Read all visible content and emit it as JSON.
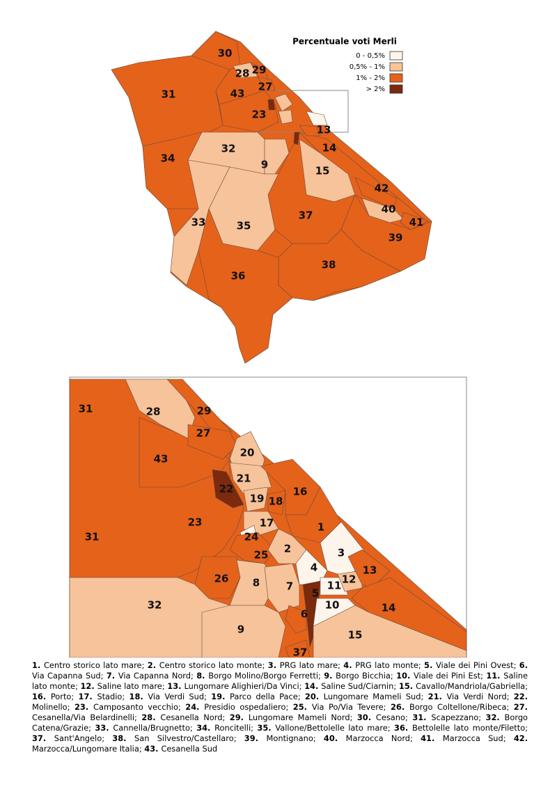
{
  "legend": {
    "title": "Percentuale voti Merli",
    "items": [
      {
        "label": "0 - 0,5%",
        "color": "#fdf5ec"
      },
      {
        "label": "0,5% - 1%",
        "color": "#f7c39a"
      },
      {
        "label": "1% - 2%",
        "color": "#e5621b"
      },
      {
        "label": "> 2%",
        "color": "#7b2a0d"
      }
    ]
  },
  "zones": [
    {
      "id": "1",
      "name": "Centro storico lato mare",
      "color": "#e5621b"
    },
    {
      "id": "2",
      "name": "Centro storico lato monte",
      "color": "#f7c39a"
    },
    {
      "id": "3",
      "name": "PRG lato mare",
      "color": "#fdf5ec"
    },
    {
      "id": "4",
      "name": "PRG lato monte",
      "color": "#fdf5ec"
    },
    {
      "id": "5",
      "name": "Viale dei Pini Ovest",
      "color": "#7b2a0d"
    },
    {
      "id": "6",
      "name": "Via Capanna Sud",
      "color": "#e5621b"
    },
    {
      "id": "7",
      "name": "Via Capanna Nord",
      "color": "#f7c39a"
    },
    {
      "id": "8",
      "name": "Borgo Molino/Borgo Ferretti",
      "color": "#f7c39a"
    },
    {
      "id": "9",
      "name": "Borgo Bicchia",
      "color": "#f7c39a"
    },
    {
      "id": "10",
      "name": "Viale dei Pini Est",
      "color": "#fdf5ec"
    },
    {
      "id": "11",
      "name": "Saline lato monte",
      "color": "#fdf5ec"
    },
    {
      "id": "12",
      "name": "Saline lato mare",
      "color": "#f7c39a"
    },
    {
      "id": "13",
      "name": "Lungomare Alighieri/Da Vinci",
      "color": "#e5621b"
    },
    {
      "id": "14",
      "name": "Saline Sud/Ciarnin",
      "color": "#e5621b"
    },
    {
      "id": "15",
      "name": "Cavallo/Mandriola/Gabriella",
      "color": "#f7c39a"
    },
    {
      "id": "16",
      "name": "Porto",
      "color": "#e5621b"
    },
    {
      "id": "17",
      "name": "Stadio",
      "color": "#f7c39a"
    },
    {
      "id": "18",
      "name": "Via Verdi Sud",
      "color": "#e5621b"
    },
    {
      "id": "19",
      "name": "Parco della Pace",
      "color": "#f7c39a"
    },
    {
      "id": "20",
      "name": "Lungomare Mameli Sud",
      "color": "#f7c39a"
    },
    {
      "id": "21",
      "name": "Via Verdi Nord",
      "color": "#f7c39a"
    },
    {
      "id": "22",
      "name": "Molinello",
      "color": "#7b2a0d"
    },
    {
      "id": "23",
      "name": "Camposanto vecchio",
      "color": "#e5621b"
    },
    {
      "id": "24",
      "name": "Presidio ospedaliero",
      "color": "#fdf5ec"
    },
    {
      "id": "25",
      "name": "Via Po/Via Tevere",
      "color": "#e5621b"
    },
    {
      "id": "26",
      "name": "Borgo Coltellone/Ribeca",
      "color": "#e5621b"
    },
    {
      "id": "27",
      "name": "Cesanella/Via Belardinelli",
      "color": "#e5621b"
    },
    {
      "id": "28",
      "name": "Cesanella Nord",
      "color": "#f7c39a"
    },
    {
      "id": "29",
      "name": "Lungomare Mameli Nord",
      "color": "#e5621b"
    },
    {
      "id": "30",
      "name": "Cesano",
      "color": "#e5621b"
    },
    {
      "id": "31",
      "name": "Scapezzano",
      "color": "#e5621b"
    },
    {
      "id": "32",
      "name": "Borgo Catena/Grazie",
      "color": "#f7c39a"
    },
    {
      "id": "33",
      "name": "Cannella/Brugnetto",
      "color": "#f7c39a"
    },
    {
      "id": "34",
      "name": "Roncitelli",
      "color": "#e5621b"
    },
    {
      "id": "35",
      "name": "Vallone/Bettolelle lato mare",
      "color": "#f7c39a"
    },
    {
      "id": "36",
      "name": "Bettolelle lato monte/Filetto",
      "color": "#e5621b"
    },
    {
      "id": "37",
      "name": "Sant'Angelo",
      "color": "#e5621b"
    },
    {
      "id": "38",
      "name": "San Silvestro/Castellaro",
      "color": "#e5621b"
    },
    {
      "id": "39",
      "name": "Montignano",
      "color": "#e5621b"
    },
    {
      "id": "40",
      "name": "Marzocca Nord",
      "color": "#f7c39a"
    },
    {
      "id": "41",
      "name": "Marzocca Sud",
      "color": "#e5621b"
    },
    {
      "id": "42",
      "name": "Marzocca/Lungomare Italia",
      "color": "#e5621b"
    },
    {
      "id": "43",
      "name": "Cesanella Sud",
      "color": "#e5621b"
    }
  ]
}
